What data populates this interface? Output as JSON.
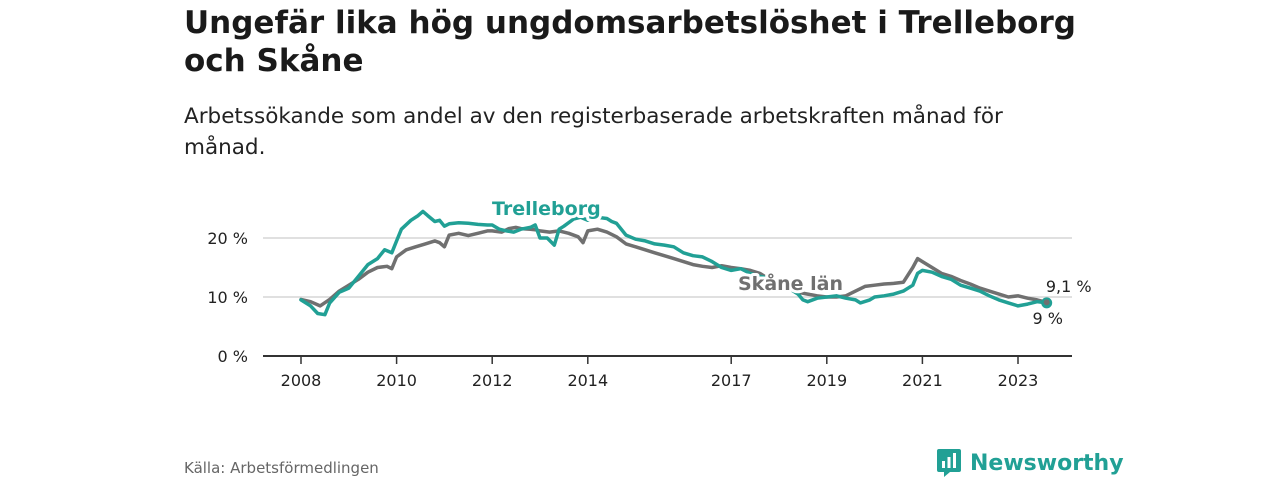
{
  "header": {
    "title": "Ungefär lika hög ungdomsarbetslöshet i Trelleborg och Skåne",
    "subtitle": "Arbetssökande som andel av den registerbaserade arbetskraften månad för månad."
  },
  "footer": {
    "source": "Källa: Arbetsförmedlingen",
    "brand": "Newsworthy"
  },
  "colors": {
    "trelleborg": "#21a095",
    "skane": "#707070",
    "grid": "#d6d6d6",
    "axis": "#333333",
    "brand": "#21a095"
  },
  "chart_data": {
    "type": "line",
    "title": "Ungefär lika hög ungdomsarbetslöshet i Trelleborg och Skåne",
    "xlabel": "",
    "ylabel": "",
    "xlim": [
      2007.7,
      2024.1
    ],
    "ylim": [
      0,
      20
    ],
    "y_ticks": [
      0,
      10,
      20
    ],
    "y_tick_labels": [
      "0 %",
      "10 %",
      "20 %"
    ],
    "x_ticks": [
      2008,
      2010,
      2012,
      2014,
      2017,
      2019,
      2021,
      2023
    ],
    "x_tick_labels": [
      "2008",
      "2010",
      "2012",
      "2014",
      "2017",
      "2019",
      "2021",
      "2023"
    ],
    "grid": true,
    "series": [
      {
        "name": "Trelleborg",
        "label": "Trelleborg",
        "end_label": "9 %",
        "points": [
          [
            2008.0,
            9.5
          ],
          [
            2008.2,
            8.5
          ],
          [
            2008.35,
            7.2
          ],
          [
            2008.5,
            7.0
          ],
          [
            2008.6,
            9.0
          ],
          [
            2008.8,
            10.8
          ],
          [
            2009.0,
            11.5
          ],
          [
            2009.2,
            13.5
          ],
          [
            2009.4,
            15.5
          ],
          [
            2009.6,
            16.5
          ],
          [
            2009.75,
            18.0
          ],
          [
            2009.9,
            17.5
          ],
          [
            2010.0,
            19.5
          ],
          [
            2010.1,
            21.5
          ],
          [
            2010.3,
            23.0
          ],
          [
            2010.45,
            23.8
          ],
          [
            2010.55,
            24.5
          ],
          [
            2010.65,
            23.8
          ],
          [
            2010.8,
            22.8
          ],
          [
            2010.9,
            23.0
          ],
          [
            2011.0,
            22.0
          ],
          [
            2011.1,
            22.4
          ],
          [
            2011.3,
            22.6
          ],
          [
            2011.5,
            22.5
          ],
          [
            2011.7,
            22.3
          ],
          [
            2011.9,
            22.2
          ],
          [
            2012.0,
            22.2
          ],
          [
            2012.15,
            21.5
          ],
          [
            2012.3,
            21.2
          ],
          [
            2012.45,
            21.0
          ],
          [
            2012.6,
            21.5
          ],
          [
            2012.8,
            21.8
          ],
          [
            2012.9,
            22.2
          ],
          [
            2013.0,
            20.0
          ],
          [
            2013.15,
            20.0
          ],
          [
            2013.3,
            18.8
          ],
          [
            2013.4,
            21.5
          ],
          [
            2013.5,
            22.0
          ],
          [
            2013.7,
            23.2
          ],
          [
            2013.85,
            23.5
          ],
          [
            2014.0,
            23.0
          ],
          [
            2014.2,
            23.5
          ],
          [
            2014.4,
            23.3
          ],
          [
            2014.5,
            22.8
          ],
          [
            2014.6,
            22.5
          ],
          [
            2014.8,
            20.5
          ],
          [
            2015.0,
            19.8
          ],
          [
            2015.2,
            19.5
          ],
          [
            2015.4,
            19.0
          ],
          [
            2015.6,
            18.8
          ],
          [
            2015.8,
            18.5
          ],
          [
            2016.0,
            17.5
          ],
          [
            2016.2,
            17.0
          ],
          [
            2016.4,
            16.8
          ],
          [
            2016.6,
            16.0
          ],
          [
            2016.8,
            15.0
          ],
          [
            2017.0,
            14.5
          ],
          [
            2017.2,
            14.8
          ],
          [
            2017.4,
            14.0
          ],
          [
            2017.6,
            13.5
          ],
          [
            2017.8,
            13.2
          ],
          [
            2018.0,
            12.5
          ],
          [
            2018.2,
            11.5
          ],
          [
            2018.4,
            10.5
          ],
          [
            2018.5,
            9.5
          ],
          [
            2018.6,
            9.2
          ],
          [
            2018.8,
            9.8
          ],
          [
            2019.0,
            10.0
          ],
          [
            2019.2,
            10.2
          ],
          [
            2019.4,
            9.8
          ],
          [
            2019.6,
            9.5
          ],
          [
            2019.7,
            9.0
          ],
          [
            2019.9,
            9.5
          ],
          [
            2020.0,
            10.0
          ],
          [
            2020.2,
            10.2
          ],
          [
            2020.4,
            10.5
          ],
          [
            2020.6,
            11.0
          ],
          [
            2020.8,
            12.0
          ],
          [
            2020.9,
            14.0
          ],
          [
            2021.0,
            14.5
          ],
          [
            2021.2,
            14.2
          ],
          [
            2021.4,
            13.5
          ],
          [
            2021.6,
            13.0
          ],
          [
            2021.8,
            12.0
          ],
          [
            2022.0,
            11.5
          ],
          [
            2022.2,
            11.0
          ],
          [
            2022.4,
            10.2
          ],
          [
            2022.6,
            9.5
          ],
          [
            2022.8,
            9.0
          ],
          [
            2023.0,
            8.5
          ],
          [
            2023.2,
            8.8
          ],
          [
            2023.4,
            9.2
          ],
          [
            2023.6,
            9.0
          ]
        ]
      },
      {
        "name": "Skåne län",
        "label": "Skåne län",
        "end_label": "9,1 %",
        "points": [
          [
            2008.0,
            9.6
          ],
          [
            2008.2,
            9.2
          ],
          [
            2008.4,
            8.5
          ],
          [
            2008.6,
            9.6
          ],
          [
            2008.8,
            11.0
          ],
          [
            2009.0,
            12.0
          ],
          [
            2009.2,
            13.0
          ],
          [
            2009.4,
            14.2
          ],
          [
            2009.6,
            15.0
          ],
          [
            2009.8,
            15.2
          ],
          [
            2009.9,
            14.8
          ],
          [
            2010.0,
            16.8
          ],
          [
            2010.2,
            18.0
          ],
          [
            2010.4,
            18.5
          ],
          [
            2010.6,
            19.0
          ],
          [
            2010.8,
            19.5
          ],
          [
            2010.9,
            19.2
          ],
          [
            2011.0,
            18.5
          ],
          [
            2011.1,
            20.5
          ],
          [
            2011.3,
            20.8
          ],
          [
            2011.5,
            20.4
          ],
          [
            2011.7,
            20.8
          ],
          [
            2011.9,
            21.2
          ],
          [
            2012.0,
            21.2
          ],
          [
            2012.2,
            21.0
          ],
          [
            2012.35,
            21.6
          ],
          [
            2012.5,
            21.8
          ],
          [
            2012.6,
            21.6
          ],
          [
            2012.8,
            21.5
          ],
          [
            2012.9,
            21.4
          ],
          [
            2013.0,
            21.2
          ],
          [
            2013.2,
            21.0
          ],
          [
            2013.4,
            21.2
          ],
          [
            2013.6,
            20.8
          ],
          [
            2013.8,
            20.2
          ],
          [
            2013.9,
            19.2
          ],
          [
            2014.0,
            21.2
          ],
          [
            2014.2,
            21.5
          ],
          [
            2014.4,
            21.0
          ],
          [
            2014.6,
            20.2
          ],
          [
            2014.8,
            19.0
          ],
          [
            2015.0,
            18.5
          ],
          [
            2015.2,
            18.0
          ],
          [
            2015.4,
            17.5
          ],
          [
            2015.6,
            17.0
          ],
          [
            2015.8,
            16.5
          ],
          [
            2016.0,
            16.0
          ],
          [
            2016.2,
            15.5
          ],
          [
            2016.4,
            15.2
          ],
          [
            2016.6,
            15.0
          ],
          [
            2016.8,
            15.3
          ],
          [
            2017.0,
            15.0
          ],
          [
            2017.2,
            14.8
          ],
          [
            2017.4,
            14.5
          ],
          [
            2017.6,
            14.0
          ],
          [
            2017.8,
            13.0
          ],
          [
            2018.0,
            12.5
          ],
          [
            2018.2,
            11.5
          ],
          [
            2018.4,
            10.8
          ],
          [
            2018.6,
            10.5
          ],
          [
            2018.8,
            10.2
          ],
          [
            2019.0,
            10.0
          ],
          [
            2019.2,
            10.0
          ],
          [
            2019.4,
            10.2
          ],
          [
            2019.6,
            11.0
          ],
          [
            2019.8,
            11.8
          ],
          [
            2020.0,
            12.0
          ],
          [
            2020.2,
            12.2
          ],
          [
            2020.4,
            12.3
          ],
          [
            2020.6,
            12.5
          ],
          [
            2020.8,
            15.0
          ],
          [
            2020.9,
            16.5
          ],
          [
            2021.0,
            16.0
          ],
          [
            2021.2,
            15.0
          ],
          [
            2021.4,
            14.0
          ],
          [
            2021.6,
            13.5
          ],
          [
            2021.8,
            12.8
          ],
          [
            2022.0,
            12.2
          ],
          [
            2022.2,
            11.5
          ],
          [
            2022.4,
            11.0
          ],
          [
            2022.6,
            10.5
          ],
          [
            2022.8,
            10.0
          ],
          [
            2023.0,
            10.2
          ],
          [
            2023.2,
            9.8
          ],
          [
            2023.4,
            9.5
          ],
          [
            2023.6,
            9.1
          ]
        ]
      }
    ]
  }
}
